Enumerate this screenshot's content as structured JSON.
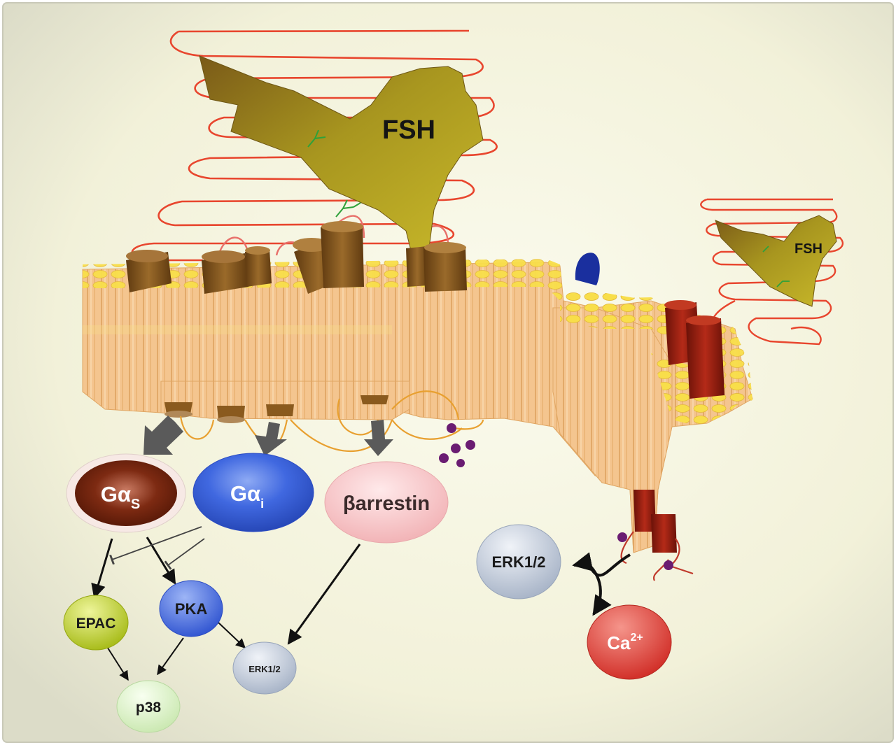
{
  "ligands": {
    "fsh_large": "FSH",
    "fsh_small": "FSH"
  },
  "effectors": {
    "gas": {
      "base": "Gα",
      "sub": "S"
    },
    "gai": {
      "base": "Gα",
      "sub": "i"
    },
    "barrestin": "βarrestin"
  },
  "downstream": {
    "epac": "EPAC",
    "pka": "PKA",
    "p38": "p38",
    "erk_left": "ERK1/2",
    "erk_right": "ERK1/2",
    "ca": {
      "base": "Ca",
      "sup": "2+"
    }
  },
  "phospho_label": "P",
  "colors": {
    "frame_bg": "#f3f2dc",
    "membrane": "#f4c58f",
    "lipid_head": "#f7dc45",
    "fsh_olive": "#8f7f22",
    "chain_red": "#e8462e",
    "receptor_brown": "#8a5a1e",
    "receptor_red": "#9a1d10",
    "gas": "#7a2a10",
    "gai": "#3d64dd",
    "barrestin": "#f6c7c9",
    "epac": "#c7d82e",
    "pka": "#4b6fde",
    "erk": "#c9d2e1",
    "p38": "#e2f4cf",
    "ca": "#e2483e",
    "phospho": "#6a1c72",
    "arrow_grey": "#595959"
  }
}
